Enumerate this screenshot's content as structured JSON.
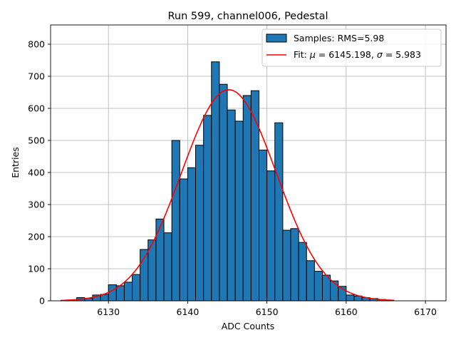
{
  "chart_data": {
    "type": "bar",
    "title": "Run 599, channel006, Pedestal",
    "xlabel": "ADC Counts",
    "ylabel": "Entries",
    "xlim": [
      6122.7,
      6172.6
    ],
    "ylim": [
      0,
      860
    ],
    "xticks": [
      6130,
      6140,
      6150,
      6160,
      6170
    ],
    "yticks": [
      0,
      100,
      200,
      300,
      400,
      500,
      600,
      700,
      800
    ],
    "grid": true,
    "legend_position": "top-right",
    "bin_edges": [
      6124,
      6125,
      6126,
      6127,
      6128,
      6129,
      6130,
      6131,
      6132,
      6133,
      6134,
      6135,
      6136,
      6137,
      6138,
      6139,
      6140,
      6141,
      6142,
      6143,
      6144,
      6145,
      6146,
      6147,
      6148,
      6149,
      6150,
      6151,
      6152,
      6153,
      6154,
      6155,
      6156,
      6157,
      6158,
      6159,
      6160,
      6161,
      6162,
      6163,
      6164,
      6165,
      6166
    ],
    "series": [
      {
        "name": "Samples: RMS=5.98",
        "type": "histogram",
        "color": "#1f77b4",
        "edgecolor": "#000000",
        "values": [
          1,
          2,
          10,
          8,
          18,
          20,
          50,
          47,
          58,
          82,
          160,
          190,
          255,
          212,
          500,
          380,
          415,
          485,
          578,
          745,
          675,
          595,
          560,
          640,
          655,
          470,
          405,
          555,
          220,
          225,
          182,
          125,
          92,
          80,
          62,
          45,
          18,
          15,
          10,
          7,
          4,
          2
        ]
      },
      {
        "name": "Fit: μ = 6145.198, σ = 5.983",
        "type": "gaussian",
        "color": "#ff0000",
        "mu": 6145.198,
        "sigma": 5.983,
        "amplitude": 658,
        "x_range": [
          6124,
          6166
        ]
      }
    ]
  },
  "legend": {
    "entries": [
      {
        "label": "Samples: RMS=5.98"
      },
      {
        "label_prefix": "Fit: ",
        "mu_symbol": "μ",
        "mu_text": " = 6145.198, ",
        "sigma_symbol": "σ",
        "sigma_text": " = 5.983"
      }
    ]
  }
}
